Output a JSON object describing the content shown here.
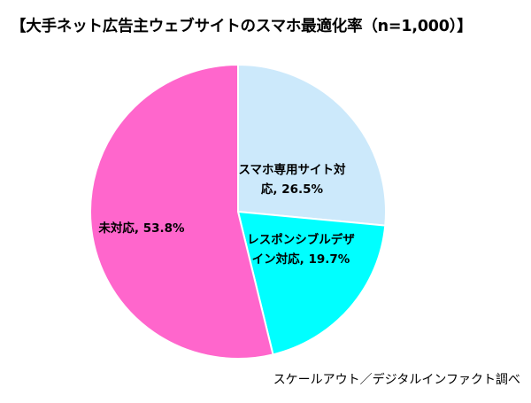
{
  "chart_data": {
    "type": "pie",
    "title": "【大手ネット広告主ウェブサイトのスマホ最適化率（n=1,000）】",
    "slices": [
      {
        "label_lines": [
          "スマホ専用サイト対",
          "応, 26.5%"
        ],
        "value": 26.5,
        "color": "#cce9fb"
      },
      {
        "label_lines": [
          "レスポンシブルデザ",
          "イン対応, 19.7%"
        ],
        "value": 19.7,
        "color": "#00ffff"
      },
      {
        "label_lines": [
          "未対応, 53.8%"
        ],
        "value": 53.8,
        "color": "#ff66cc"
      }
    ],
    "source": "スケールアウト／デジタルインファクト調べ"
  }
}
